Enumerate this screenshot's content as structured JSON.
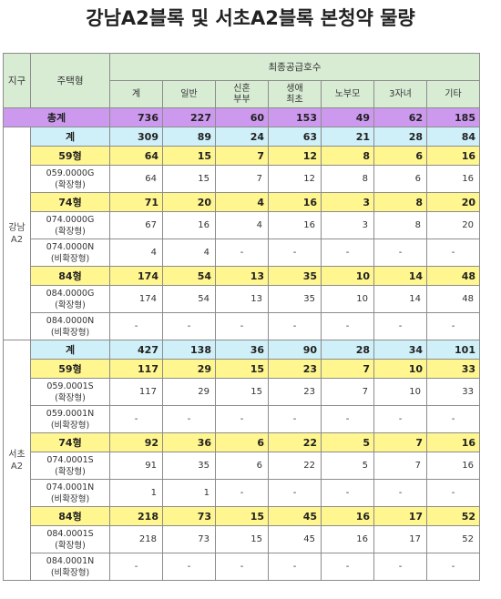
{
  "title": "강남A2블록 및 서초A2블록 본청약 물량",
  "headers": {
    "district": "지구",
    "housing_type": "주택형",
    "group": "최종공급호수",
    "columns": [
      "계",
      "일반",
      "신혼\n부부",
      "생애\n최초",
      "노부모",
      "3자녀",
      "기타"
    ]
  },
  "total": {
    "label": "총계",
    "values": [
      "736",
      "227",
      "60",
      "153",
      "49",
      "62",
      "185"
    ]
  },
  "districts": [
    {
      "name": "강남\nA2",
      "sum": {
        "label": "계",
        "values": [
          "309",
          "89",
          "24",
          "63",
          "21",
          "28",
          "84"
        ]
      },
      "types": [
        {
          "label": "59형",
          "values": [
            "64",
            "15",
            "7",
            "12",
            "8",
            "6",
            "16"
          ],
          "codes": [
            {
              "code": "059.0000G\n(확장형)",
              "values": [
                "64",
                "15",
                "7",
                "12",
                "8",
                "6",
                "16"
              ]
            }
          ]
        },
        {
          "label": "74형",
          "values": [
            "71",
            "20",
            "4",
            "16",
            "3",
            "8",
            "20"
          ],
          "codes": [
            {
              "code": "074.0000G\n(확장형)",
              "values": [
                "67",
                "16",
                "4",
                "16",
                "3",
                "8",
                "20"
              ]
            },
            {
              "code": "074.0000N\n(비확장형)",
              "values": [
                "4",
                "4",
                "-",
                "-",
                "-",
                "-",
                "-"
              ]
            }
          ]
        },
        {
          "label": "84형",
          "values": [
            "174",
            "54",
            "13",
            "35",
            "10",
            "14",
            "48"
          ],
          "codes": [
            {
              "code": "084.0000G\n(확장형)",
              "values": [
                "174",
                "54",
                "13",
                "35",
                "10",
                "14",
                "48"
              ]
            },
            {
              "code": "084.0000N\n(비확장형)",
              "values": [
                "-",
                "-",
                "-",
                "-",
                "-",
                "-",
                "-"
              ]
            }
          ]
        }
      ]
    },
    {
      "name": "서초\nA2",
      "sum": {
        "label": "계",
        "values": [
          "427",
          "138",
          "36",
          "90",
          "28",
          "34",
          "101"
        ]
      },
      "types": [
        {
          "label": "59형",
          "values": [
            "117",
            "29",
            "15",
            "23",
            "7",
            "10",
            "33"
          ],
          "codes": [
            {
              "code": "059.0001S\n(확장형)",
              "values": [
                "117",
                "29",
                "15",
                "23",
                "7",
                "10",
                "33"
              ]
            },
            {
              "code": "059.0001N\n(비확장형)",
              "values": [
                "-",
                "-",
                "-",
                "-",
                "-",
                "-",
                "-"
              ]
            }
          ]
        },
        {
          "label": "74형",
          "values": [
            "92",
            "36",
            "6",
            "22",
            "5",
            "7",
            "16"
          ],
          "codes": [
            {
              "code": "074.0001S\n(확장형)",
              "values": [
                "91",
                "35",
                "6",
                "22",
                "5",
                "7",
                "16"
              ]
            },
            {
              "code": "074.0001N\n(비확장형)",
              "values": [
                "1",
                "1",
                "-",
                "-",
                "-",
                "-",
                "-"
              ]
            }
          ]
        },
        {
          "label": "84형",
          "values": [
            "218",
            "73",
            "15",
            "45",
            "16",
            "17",
            "52"
          ],
          "codes": [
            {
              "code": "084.0001S\n(확장형)",
              "values": [
                "218",
                "73",
                "15",
                "45",
                "16",
                "17",
                "52"
              ]
            },
            {
              "code": "084.0001N\n(비확장형)",
              "values": [
                "-",
                "-",
                "-",
                "-",
                "-",
                "-",
                "-"
              ]
            }
          ]
        }
      ]
    }
  ]
}
